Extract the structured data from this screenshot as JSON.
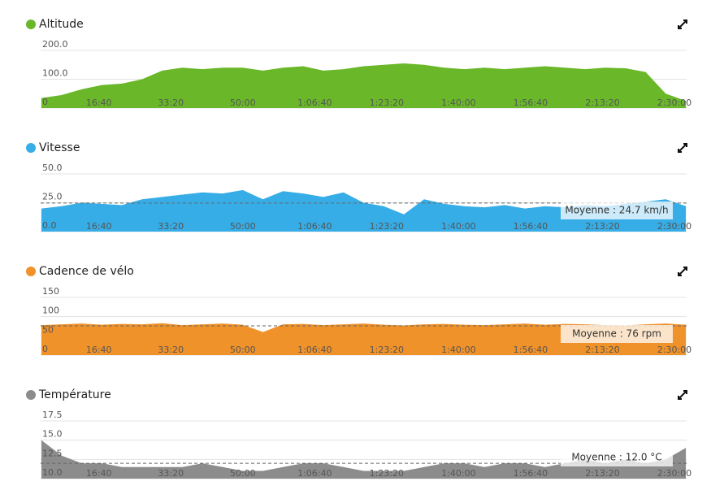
{
  "chart_data": [
    {
      "type": "area",
      "title": "Altitude",
      "color": "#6ab82a",
      "x": [
        200,
        480,
        760,
        1040,
        1320,
        1600,
        1880,
        2160,
        2440,
        2720,
        3000,
        3280,
        3560,
        3840,
        4120,
        4400,
        4680,
        4960,
        5240,
        5520,
        5800,
        6080,
        6360,
        6640,
        6920,
        7200,
        7480,
        7760,
        8040,
        8320,
        8600,
        8880,
        9160
      ],
      "values": [
        35,
        45,
        65,
        80,
        85,
        100,
        130,
        140,
        135,
        140,
        140,
        130,
        140,
        145,
        130,
        135,
        145,
        150,
        155,
        150,
        140,
        135,
        140,
        135,
        140,
        145,
        140,
        135,
        140,
        138,
        125,
        50,
        25
      ],
      "xlim": [
        190,
        9170
      ],
      "xticks": [
        {
          "value": 1000,
          "label": "16:40"
        },
        {
          "value": 2000,
          "label": "33:20"
        },
        {
          "value": 3000,
          "label": "50:00"
        },
        {
          "value": 4000,
          "label": "1:06:40"
        },
        {
          "value": 5000,
          "label": "1:23:20"
        },
        {
          "value": 6000,
          "label": "1:40:00"
        },
        {
          "value": 7000,
          "label": "1:56:40"
        },
        {
          "value": 8000,
          "label": "2:13:20"
        },
        {
          "value": 9000,
          "label": "2:30:00"
        }
      ],
      "ylim": [
        0,
        200
      ],
      "yticks": [
        0,
        {
          "value": 100,
          "label": "100.0"
        },
        {
          "value": 200,
          "label": "200.0"
        }
      ]
    },
    {
      "type": "area",
      "title": "Vitesse",
      "color": "#36ade6",
      "x": [
        200,
        480,
        760,
        1040,
        1320,
        1600,
        1880,
        2160,
        2440,
        2720,
        3000,
        3280,
        3560,
        3840,
        4120,
        4400,
        4680,
        4960,
        5240,
        5520,
        5800,
        6080,
        6360,
        6640,
        6920,
        7200,
        7480,
        7760,
        8040,
        8320,
        8600,
        8880,
        9160
      ],
      "values": [
        20,
        22,
        25,
        24,
        23,
        28,
        30,
        32,
        34,
        33,
        36,
        28,
        35,
        33,
        30,
        34,
        25,
        22,
        15,
        28,
        24,
        22,
        21,
        23,
        20,
        22,
        21,
        23,
        22,
        24,
        26,
        28,
        22
      ],
      "xlim": [
        190,
        9170
      ],
      "xticks": [
        {
          "value": 1000,
          "label": "16:40"
        },
        {
          "value": 2000,
          "label": "33:20"
        },
        {
          "value": 3000,
          "label": "50:00"
        },
        {
          "value": 4000,
          "label": "1:06:40"
        },
        {
          "value": 5000,
          "label": "1:23:20"
        },
        {
          "value": 6000,
          "label": "1:40:00"
        },
        {
          "value": 7000,
          "label": "1:56:40"
        },
        {
          "value": 8000,
          "label": "2:13:20"
        },
        {
          "value": 9000,
          "label": "2:30:00"
        }
      ],
      "ylim": [
        0,
        50
      ],
      "yticks": [
        {
          "value": 0,
          "label": "0.0"
        },
        {
          "value": 25,
          "label": "25.0"
        },
        {
          "value": 50,
          "label": "50.0"
        }
      ],
      "average": 24.7,
      "average_label": "Moyenne : 24.7 km/h"
    },
    {
      "type": "area",
      "title": "Cadence de vélo",
      "color": "#f0922a",
      "x": [
        200,
        480,
        760,
        1040,
        1320,
        1600,
        1880,
        2160,
        2440,
        2720,
        3000,
        3280,
        3560,
        3840,
        4120,
        4400,
        4680,
        4960,
        5240,
        5520,
        5800,
        6080,
        6360,
        6640,
        6920,
        7200,
        7480,
        7760,
        8040,
        8320,
        8600,
        8880,
        9160
      ],
      "values": [
        78,
        80,
        82,
        79,
        81,
        80,
        83,
        78,
        80,
        82,
        79,
        60,
        80,
        81,
        78,
        80,
        82,
        79,
        77,
        80,
        81,
        79,
        78,
        80,
        82,
        79,
        81,
        80,
        78,
        77,
        80,
        82,
        79
      ],
      "xlim": [
        190,
        9170
      ],
      "xticks": [
        {
          "value": 1000,
          "label": "16:40"
        },
        {
          "value": 2000,
          "label": "33:20"
        },
        {
          "value": 3000,
          "label": "50:00"
        },
        {
          "value": 4000,
          "label": "1:06:40"
        },
        {
          "value": 5000,
          "label": "1:23:20"
        },
        {
          "value": 6000,
          "label": "1:40:00"
        },
        {
          "value": 7000,
          "label": "1:56:40"
        },
        {
          "value": 8000,
          "label": "2:13:20"
        },
        {
          "value": 9000,
          "label": "2:30:00"
        }
      ],
      "ylim": [
        0,
        150
      ],
      "yticks": [
        0,
        50,
        100,
        150
      ],
      "average": 76,
      "average_label": "Moyenne : 76 rpm"
    },
    {
      "type": "area",
      "title": "Température",
      "color": "#8c8c8c",
      "x": [
        200,
        480,
        760,
        1040,
        1320,
        1600,
        1880,
        2160,
        2440,
        2720,
        3000,
        3280,
        3560,
        3840,
        4120,
        4400,
        4680,
        4960,
        5240,
        5520,
        5800,
        6080,
        6360,
        6640,
        6920,
        7200,
        7480,
        7760,
        8040,
        8320,
        8600,
        8880,
        9160
      ],
      "values": [
        15,
        13,
        12,
        12,
        11.5,
        11.5,
        11.5,
        11.5,
        12,
        11.5,
        11,
        11,
        11.5,
        12,
        12,
        11.5,
        11,
        11,
        11,
        11.5,
        12,
        12,
        11.5,
        12,
        12,
        11.5,
        12,
        12.5,
        12,
        12.5,
        12,
        12.5,
        14
      ],
      "xlim": [
        190,
        9170
      ],
      "xticks": [
        {
          "value": 1000,
          "label": "16:40"
        },
        {
          "value": 2000,
          "label": "33:20"
        },
        {
          "value": 3000,
          "label": "50:00"
        },
        {
          "value": 4000,
          "label": "1:06:40"
        },
        {
          "value": 5000,
          "label": "1:23:20"
        },
        {
          "value": 6000,
          "label": "1:40:00"
        },
        {
          "value": 7000,
          "label": "1:56:40"
        },
        {
          "value": 8000,
          "label": "2:13:20"
        },
        {
          "value": 9000,
          "label": "2:30:00"
        }
      ],
      "ylim": [
        10,
        17.5
      ],
      "yticks": [
        {
          "value": 10,
          "label": "10.0"
        },
        {
          "value": 12.5,
          "label": "12.5"
        },
        {
          "value": 15,
          "label": "15.0"
        },
        {
          "value": 17.5,
          "label": "17.5"
        }
      ],
      "average": 12.0,
      "average_label": "Moyenne : 12.0 °C"
    }
  ]
}
